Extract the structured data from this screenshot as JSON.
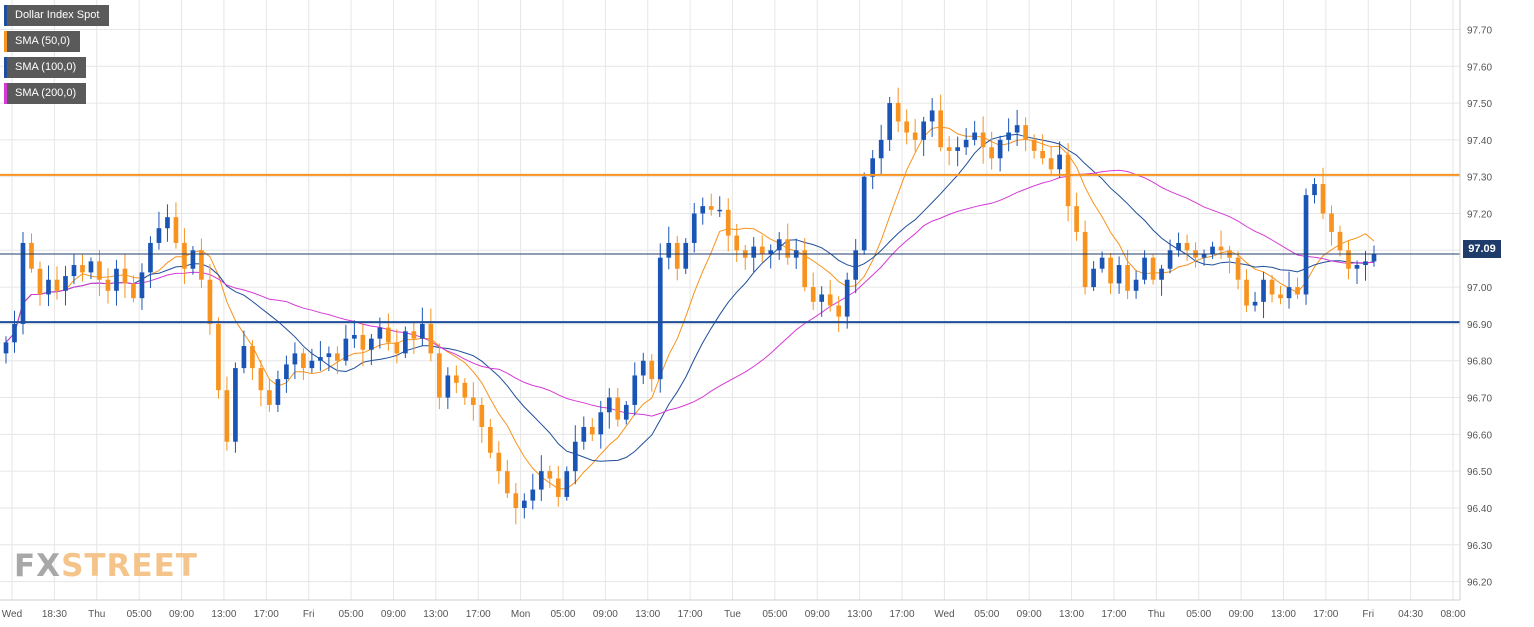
{
  "legend": {
    "items": [
      {
        "label": "Dollar Index Spot",
        "color": "#1f4e9a"
      },
      {
        "label": "SMA (50,0)",
        "color": "#f7931e"
      },
      {
        "label": "SMA (100,0)",
        "color": "#1f4e9a"
      },
      {
        "label": "SMA (200,0)",
        "color": "#d63ad6"
      }
    ]
  },
  "watermark": {
    "part1": "FX",
    "part2": "STREET"
  },
  "last_price_label": "97.09",
  "colors": {
    "bull": "#1a55b5",
    "bear": "#f7931e",
    "sma50": "#f7931e",
    "sma100": "#1f4e9a",
    "sma200": "#d63ad6",
    "resistance": "#f7931e",
    "support": "#1f4e9a",
    "current": "#1f3b6b",
    "grid": "#e6e6e6"
  },
  "chart_data": {
    "type": "candlestick",
    "title": "",
    "ylim": [
      96.15,
      97.78
    ],
    "y_ticks": [
      "97.70",
      "97.60",
      "97.50",
      "97.40",
      "97.30",
      "97.20",
      "97.10",
      "97.00",
      "96.90",
      "96.80",
      "96.70",
      "96.60",
      "96.50",
      "96.40",
      "96.30",
      "96.20"
    ],
    "x_ticks": [
      "Wed",
      "18:30",
      "Thu",
      "05:00",
      "09:00",
      "13:00",
      "17:00",
      "Fri",
      "05:00",
      "09:00",
      "13:00",
      "17:00",
      "Mon",
      "05:00",
      "09:00",
      "13:00",
      "17:00",
      "Tue",
      "05:00",
      "09:00",
      "13:00",
      "17:00",
      "Wed",
      "05:00",
      "09:00",
      "13:00",
      "17:00",
      "Thu",
      "05:00",
      "09:00",
      "13:00",
      "17:00",
      "Fri",
      "04:30",
      "08:00"
    ],
    "horizontal_levels": [
      {
        "value": 97.305,
        "role": "resistance"
      },
      {
        "value": 96.905,
        "role": "support"
      },
      {
        "value": 97.09,
        "role": "current"
      }
    ],
    "closes": [
      96.85,
      96.9,
      97.12,
      97.05,
      96.98,
      97.02,
      96.99,
      97.03,
      97.06,
      97.04,
      97.07,
      97.02,
      96.99,
      97.05,
      97.01,
      96.97,
      97.04,
      97.12,
      97.16,
      97.19,
      97.12,
      97.05,
      97.1,
      97.02,
      96.9,
      96.72,
      96.58,
      96.78,
      96.84,
      96.78,
      96.72,
      96.68,
      96.75,
      96.79,
      96.82,
      96.78,
      96.8,
      96.81,
      96.82,
      96.8,
      96.86,
      96.87,
      96.83,
      96.86,
      96.89,
      96.85,
      96.82,
      96.88,
      96.86,
      96.9,
      96.82,
      96.7,
      96.76,
      96.74,
      96.7,
      96.68,
      96.62,
      96.55,
      96.5,
      96.44,
      96.4,
      96.42,
      96.45,
      96.5,
      96.48,
      96.43,
      96.5,
      96.58,
      96.62,
      96.6,
      96.66,
      96.7,
      96.64,
      96.68,
      96.76,
      96.8,
      96.75,
      97.08,
      97.12,
      97.05,
      97.12,
      97.2,
      97.22,
      97.21,
      97.21,
      97.14,
      97.1,
      97.08,
      97.11,
      97.09,
      97.1,
      97.13,
      97.08,
      97.1,
      97.0,
      96.96,
      96.98,
      96.95,
      96.92,
      97.02,
      97.1,
      97.3,
      97.35,
      97.4,
      97.5,
      97.45,
      97.42,
      97.4,
      97.45,
      97.48,
      97.38,
      97.37,
      97.38,
      97.4,
      97.42,
      97.38,
      97.35,
      97.4,
      97.42,
      97.44,
      97.4,
      97.37,
      97.35,
      97.32,
      97.36,
      97.22,
      97.15,
      97.0,
      97.05,
      97.08,
      97.01,
      97.06,
      96.99,
      97.02,
      97.08,
      97.02,
      97.05,
      97.1,
      97.12,
      97.1,
      97.08,
      97.09,
      97.11,
      97.1,
      97.08,
      97.02,
      96.95,
      96.96,
      97.02,
      96.98,
      96.97,
      97.0,
      96.98,
      97.25,
      97.28,
      97.2,
      97.15,
      97.1,
      97.05,
      97.06,
      97.07,
      97.09
    ]
  }
}
